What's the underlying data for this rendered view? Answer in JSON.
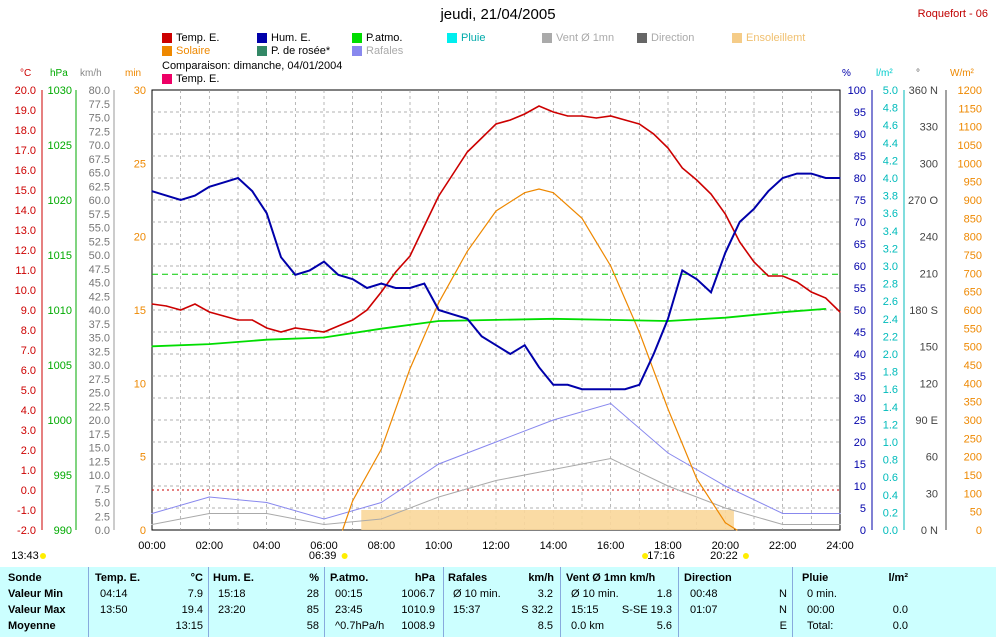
{
  "title": "jeudi, 21/04/2005",
  "station": "Roquefort - 06",
  "legend": [
    {
      "label": "Temp. E.",
      "color": "#cc0000"
    },
    {
      "label": "Hum. E.",
      "color": "#0000aa"
    },
    {
      "label": "P.atmo.",
      "color": "#00dd00"
    },
    {
      "label": "Pluie",
      "color": "#00eeee"
    },
    {
      "label": "Vent Ø 1mn",
      "color": "#aaaaaa"
    },
    {
      "label": "Direction",
      "color": "#666666"
    },
    {
      "label": "Ensoleillemt",
      "color": "#f5cc88"
    },
    {
      "label": "Solaire",
      "color": "#ee8800"
    },
    {
      "label": "P. de rosée*",
      "color": "#338866"
    },
    {
      "label": "Rafales",
      "color": "#8888ee"
    }
  ],
  "comparison": "Comparaison: dimanche, 04/01/2004",
  "comparison_legend": {
    "label": "Temp. E.",
    "color": "#ee0066"
  },
  "axis_headers": {
    "temp": "°C",
    "pres": "hPa",
    "wind": "km/h",
    "min": "min",
    "hum": "%",
    "rain": "l/m²",
    "dir": "°",
    "solar": "W/m²"
  },
  "axes": {
    "temp": [
      "20.0",
      "19.0",
      "18.0",
      "17.0",
      "16.0",
      "15.0",
      "14.0",
      "13.0",
      "12.0",
      "11.0",
      "10.0",
      "9.0",
      "8.0",
      "7.0",
      "6.0",
      "5.0",
      "4.0",
      "3.0",
      "2.0",
      "1.0",
      "0.0",
      "-1.0",
      "-2.0"
    ],
    "pres": [
      "1030",
      "1025",
      "1020",
      "1015",
      "1010",
      "1005",
      "1000",
      "995",
      "990"
    ],
    "wind": [
      "80.0",
      "77.5",
      "75.0",
      "72.5",
      "70.0",
      "67.5",
      "65.0",
      "62.5",
      "60.0",
      "57.5",
      "55.0",
      "52.5",
      "50.0",
      "47.5",
      "45.0",
      "42.5",
      "40.0",
      "37.5",
      "35.0",
      "32.5",
      "30.0",
      "27.5",
      "25.0",
      "22.5",
      "20.0",
      "17.5",
      "15.0",
      "12.5",
      "10.0",
      "7.5",
      "5.0",
      "2.5",
      "0.0"
    ],
    "min": [
      "30",
      "25",
      "20",
      "15",
      "10",
      "5",
      "0"
    ],
    "hum": [
      "100",
      "95",
      "90",
      "85",
      "80",
      "75",
      "70",
      "65",
      "60",
      "55",
      "50",
      "45",
      "40",
      "35",
      "30",
      "25",
      "20",
      "15",
      "10",
      "5",
      "0"
    ],
    "rain": [
      "5.0",
      "4.8",
      "4.6",
      "4.4",
      "4.2",
      "4.0",
      "3.8",
      "3.6",
      "3.4",
      "3.2",
      "3.0",
      "2.8",
      "2.6",
      "2.4",
      "2.2",
      "2.0",
      "1.8",
      "1.6",
      "1.4",
      "1.2",
      "1.0",
      "0.8",
      "0.6",
      "0.4",
      "0.2",
      "0.0"
    ],
    "dir": [
      "360 N",
      "330",
      "300",
      "270 O",
      "240",
      "210",
      "180 S",
      "150",
      "120",
      "90 E",
      "60",
      "30",
      "0 N"
    ],
    "solar": [
      "1200",
      "1150",
      "1100",
      "1050",
      "1000",
      "950",
      "900",
      "850",
      "800",
      "750",
      "700",
      "650",
      "600",
      "550",
      "500",
      "450",
      "400",
      "350",
      "300",
      "250",
      "200",
      "150",
      "100",
      "50",
      "0"
    ],
    "x": [
      "00:00",
      "02:00",
      "04:00",
      "06:00",
      "08:00",
      "10:00",
      "12:00",
      "14:00",
      "16:00",
      "18:00",
      "20:00",
      "22:00",
      "24:00"
    ]
  },
  "sun_marks": {
    "moon": "13:43",
    "sunrise": "06:39",
    "noon": "17:16",
    "sunset": "20:22"
  },
  "chart_data": {
    "type": "line",
    "x_unit": "hours",
    "series": [
      {
        "name": "Temp. E.",
        "x": [
          0,
          0.5,
          1,
          1.5,
          2,
          2.5,
          3,
          3.5,
          4,
          4.5,
          5,
          5.5,
          6,
          6.5,
          7,
          7.5,
          8,
          8.5,
          9,
          9.5,
          10,
          10.5,
          11,
          11.5,
          12,
          12.5,
          13,
          13.5,
          14,
          14.5,
          15,
          15.5,
          16,
          16.5,
          17,
          17.5,
          18,
          18.5,
          19,
          19.5,
          20,
          20.5,
          21,
          21.5,
          22,
          22.5,
          23,
          23.5,
          24
        ],
        "y": [
          9.3,
          9.2,
          9.0,
          9.3,
          8.9,
          8.7,
          8.5,
          8.5,
          8.1,
          7.9,
          8.1,
          8.0,
          7.9,
          8.2,
          8.5,
          9.0,
          9.9,
          10.9,
          11.7,
          13.2,
          14.7,
          15.8,
          16.9,
          17.6,
          18.3,
          18.5,
          18.8,
          19.2,
          18.9,
          18.7,
          18.7,
          18.6,
          18.7,
          18.5,
          18.3,
          17.8,
          17.1,
          16.1,
          15.5,
          14.8,
          13.8,
          12.4,
          11.4,
          10.7,
          10.7,
          10.4,
          9.9,
          9.6,
          8.9
        ]
      },
      {
        "name": "Hum. E.",
        "x": [
          0,
          0.5,
          1,
          1.5,
          2,
          2.5,
          3,
          3.5,
          4,
          4.5,
          5,
          5.5,
          6,
          6.5,
          7,
          7.5,
          8,
          8.5,
          9,
          9.5,
          10,
          10.5,
          11,
          11.5,
          12,
          12.5,
          13,
          13.5,
          14,
          14.5,
          15,
          15.5,
          16,
          16.5,
          17,
          17.5,
          18,
          18.5,
          19,
          19.5,
          20,
          20.5,
          21,
          21.5,
          22,
          22.5,
          23,
          23.5,
          24
        ],
        "y": [
          77,
          76,
          75,
          76,
          78,
          79,
          80,
          77,
          72,
          62,
          58,
          59,
          61,
          58,
          57,
          55,
          56,
          55,
          55,
          56,
          50,
          49,
          48,
          44,
          42,
          40,
          42,
          37,
          33,
          33,
          32,
          32,
          32,
          32,
          33,
          40,
          48,
          59,
          57,
          54,
          63,
          70,
          73,
          77,
          80,
          81,
          81,
          80,
          80
        ]
      },
      {
        "name": "P.atmo.",
        "x": [
          0,
          2,
          4,
          6,
          8,
          10,
          12,
          14,
          16,
          18,
          20,
          22,
          23.5
        ],
        "y": [
          1006.7,
          1006.9,
          1007.3,
          1007.5,
          1008.3,
          1009.0,
          1009.1,
          1009.2,
          1009.1,
          1009.0,
          1009.3,
          1009.8,
          1010.1
        ]
      },
      {
        "name": "Solaire",
        "x": [
          6.65,
          7,
          8,
          9,
          10,
          11,
          12,
          13,
          13.5,
          14,
          15,
          16,
          17,
          18,
          19,
          20,
          20.4
        ],
        "y": [
          0,
          80,
          220,
          440,
          620,
          760,
          870,
          920,
          930,
          920,
          850,
          720,
          540,
          330,
          140,
          20,
          0
        ]
      },
      {
        "name": "Rafales",
        "x": [
          0,
          2,
          4,
          6,
          8,
          10,
          12,
          14,
          16,
          18,
          20,
          22,
          24
        ],
        "y": [
          3,
          6,
          5,
          2,
          5,
          12,
          16,
          20,
          23,
          14,
          8,
          3,
          3
        ]
      },
      {
        "name": "Vent Ø 1mn",
        "x": [
          0,
          2,
          4,
          6,
          8,
          10,
          12,
          14,
          16,
          18,
          20,
          22,
          24
        ],
        "y": [
          1,
          3,
          3,
          1,
          2,
          6,
          9,
          11,
          13,
          8,
          4,
          1,
          1
        ]
      }
    ]
  },
  "table": {
    "headers": [
      "Sonde",
      "Temp. E.",
      "°C",
      "Hum. E.",
      "%",
      "P.atmo.",
      "hPa",
      "Rafales",
      "km/h",
      "Vent Ø 1mn  km/h",
      "Direction",
      "Pluie",
      "l/m²"
    ],
    "rows": [
      {
        "label": "Valeur Min",
        "t_time": "04:14",
        "t_val": "7.9",
        "h_time": "15:18",
        "h_val": "28",
        "p_time": "00:15",
        "p_val": "1006.7",
        "r_time": "Ø 10 min.",
        "r_val": "3.2",
        "v_time": "Ø 10 min.",
        "v_val": "1.8",
        "d_time": "00:48",
        "d_val": "N",
        "pl_time": "0 min.",
        "pl_val": ""
      },
      {
        "label": "Valeur Max",
        "t_time": "13:50",
        "t_val": "19.4",
        "h_time": "23:20",
        "h_val": "85",
        "p_time": "23:45",
        "p_val": "1010.9",
        "r_time": "15:37",
        "r_val": "S 32.2",
        "v_time": "15:15",
        "v_val": "S-SE 19.3",
        "d_time": "01:07",
        "d_val": "N",
        "pl_time": "00:00",
        "pl_val": "0.0"
      },
      {
        "label": "Moyenne",
        "t_time": "",
        "t_val": "13:15",
        "h_time": "",
        "h_val": "58",
        "p_time": "^0.7hPa/h",
        "p_val": "1008.9",
        "r_time": "",
        "r_val": "8.5",
        "v_time": "0.0 km",
        "v_val": "5.6",
        "d_time": "",
        "d_val": "E",
        "pl_time": "Total:",
        "pl_val": "0.0"
      }
    ]
  }
}
